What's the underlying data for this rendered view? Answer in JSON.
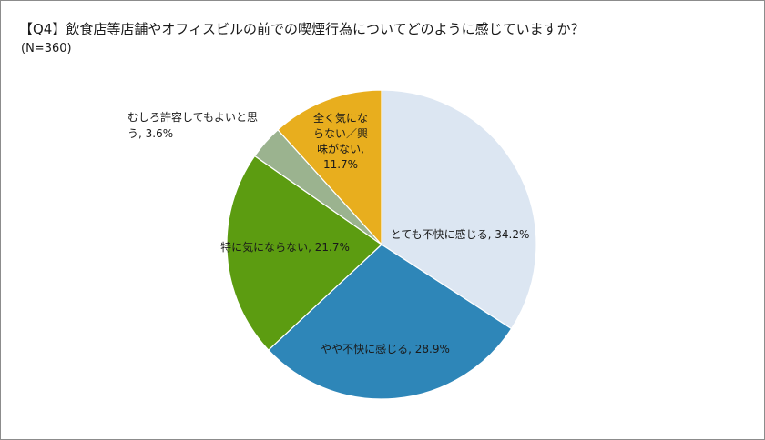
{
  "chart_data": {
    "type": "pie",
    "title": "【Q4】飲食店等店舗やオフィスビルの前での喫煙行為についてどのように感じていますか？",
    "subtitle": "(N=360)",
    "slices": [
      {
        "label": "とても不快に感じる, 34.2%",
        "value": 34.2,
        "color": "#dce6f2"
      },
      {
        "label": "やや不快に感じる, 28.9%",
        "value": 28.9,
        "color": "#2e86b8"
      },
      {
        "label": "特に気にならない, 21.7%",
        "value": 21.7,
        "color": "#5c9c11"
      },
      {
        "label": "むしろ許容してもよいと思う, 3.6%",
        "value": 3.6,
        "color": "#9bb38f"
      },
      {
        "label": "全く気にならない／興味がない, 11.7%",
        "value": 11.7,
        "color": "#e8ae1e"
      }
    ],
    "label_lines": [
      [
        "とても不快に感じる, 34.2%"
      ],
      [
        "やや不快に感じる, 28.9%"
      ],
      [
        "特に気にならない, 21.7%"
      ],
      [
        "むしろ許容してもよいと思",
        "う, 3.6%"
      ],
      [
        "全く気にな",
        "らない／興",
        "味がない,",
        "11.7%"
      ]
    ],
    "legend": "none"
  }
}
